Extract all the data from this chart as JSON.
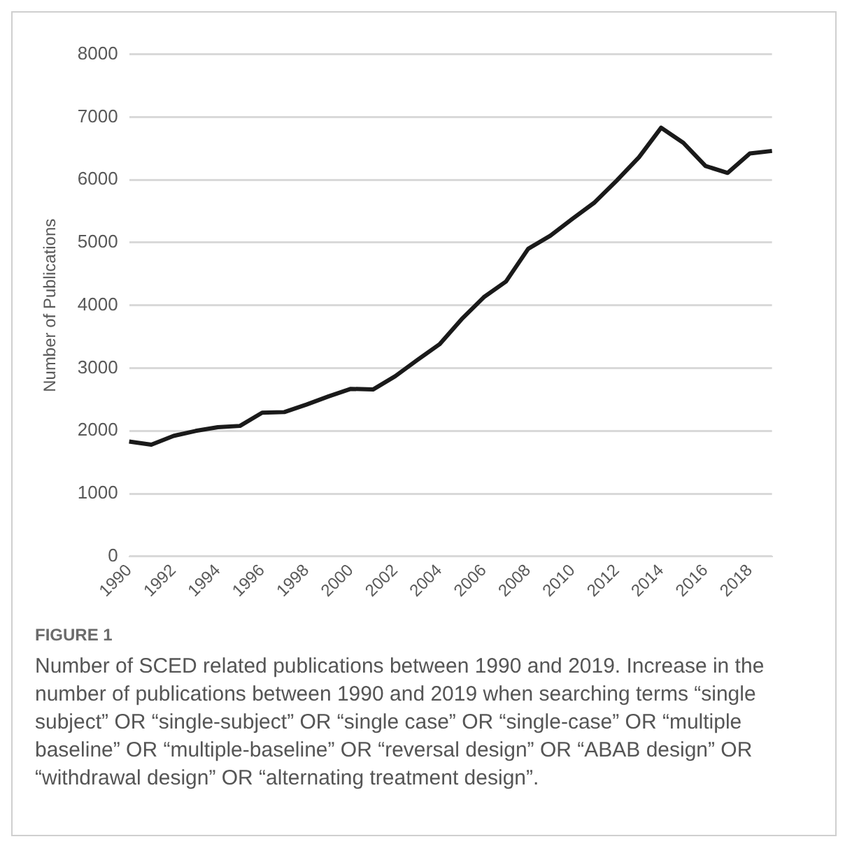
{
  "chart_data": {
    "type": "line",
    "ylabel": "Number of Publications",
    "categories": [
      "1990",
      null,
      "1992",
      null,
      "1994",
      null,
      "1996",
      null,
      "1998",
      null,
      "2000",
      null,
      "2002",
      null,
      "2004",
      null,
      "2006",
      null,
      "2008",
      null,
      "2010",
      null,
      "2012",
      null,
      "2014",
      null,
      "2016",
      null,
      "2018",
      null
    ],
    "series": [
      {
        "color": "#1a1a1a",
        "values": [
          1830,
          1780,
          1920,
          2000,
          2060,
          2080,
          2290,
          2300,
          2420,
          2550,
          2670,
          2660,
          2870,
          3130,
          3380,
          3780,
          4130,
          4380,
          4900,
          5110,
          5380,
          5640,
          5990,
          6360,
          6830,
          6590,
          6220,
          6110,
          6420,
          6460
        ]
      }
    ],
    "ylim": [
      0,
      8000
    ],
    "yticks": [
      0,
      1000,
      2000,
      3000,
      4000,
      5000,
      6000,
      7000,
      8000
    ],
    "grid": "y",
    "legend": false,
    "marker": "none",
    "line_style": "solid",
    "annotations": [
      "FIGURE 1",
      "Number of SCED related publications between 1990 and 2019. Increase in the number of publications between 1990 and 2019 when searching terms “single subject” OR “single-subject” OR “single case” OR “single-case” OR “multiple baseline” OR “multiple-baseline” OR “reversal design” OR “ABAB design” OR “withdrawal design” OR “alternating treatment design”."
    ]
  }
}
